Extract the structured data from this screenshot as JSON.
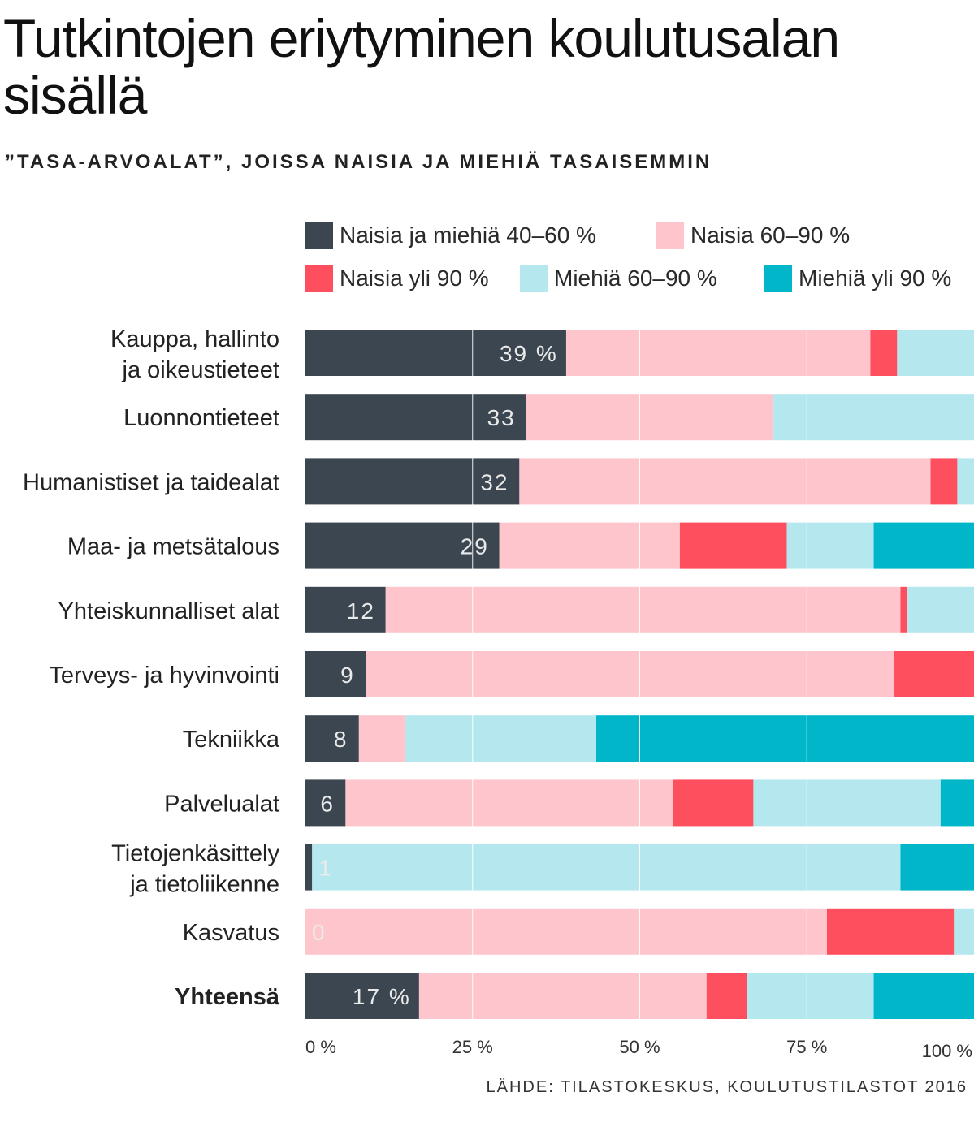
{
  "title": "Tutkintojen eriytyminen koulutusalan sisällä",
  "subtitle": "”TASA-ARVOALAT”, JOISSA NAISIA JA MIEHIÄ TASAISEMMIN",
  "source": "LÄHDE: TILASTOKESKUS, KOULUTUSTILASTOT 2016",
  "chart_data": {
    "type": "bar",
    "orientation": "horizontal",
    "stacked": true,
    "xlim": [
      0,
      100
    ],
    "x_ticks": [
      0,
      25,
      50,
      75,
      100
    ],
    "x_tick_labels": [
      "0 %",
      "25  %",
      "50 %",
      "75 %",
      "100 %"
    ],
    "grid": true,
    "legend_position": "top",
    "categories": [
      "Kauppa, hallinto ja oikeustieteet",
      "Luonnontieteet",
      "Humanistiset ja taidealat",
      "Maa- ja metsätalous",
      "Yhteiskunnalliset alat",
      "Terveys- ja hyvinvointi",
      "Tekniikka",
      "Palvelualat",
      "Tietojenkäsittely ja tietoliikenne",
      "Kasvatus",
      "Yhteensä"
    ],
    "bold_categories": [
      "Yhteensä"
    ],
    "value_labels": [
      "39 %",
      "33",
      "32",
      "29",
      "12",
      "9",
      "8",
      "6",
      "1",
      "0",
      "17 %"
    ],
    "series": [
      {
        "name": "Naisia ja miehiä 40–60 %",
        "color": "#3b4650",
        "values": [
          39,
          33,
          32,
          29,
          12,
          9,
          8,
          6,
          1,
          0,
          17
        ]
      },
      {
        "name": "Naisia 60–90 %",
        "color": "#fec6cc",
        "values": [
          45.5,
          37,
          61.5,
          27,
          77,
          79,
          7,
          49,
          0,
          78,
          43
        ]
      },
      {
        "name": "Naisia yli 90 %",
        "color": "#fe4f5e",
        "values": [
          4,
          0,
          4,
          16,
          1,
          12,
          0,
          12,
          0,
          19,
          6
        ]
      },
      {
        "name": "Miehiä 60–90 %",
        "color": "#b4e8ee",
        "values": [
          11.5,
          30,
          2.5,
          13,
          10,
          0,
          28.5,
          28,
          88,
          3,
          19
        ]
      },
      {
        "name": "Miehiä yli 90 %",
        "color": "#01b6c9",
        "values": [
          0,
          0,
          0,
          15,
          0,
          0,
          56.5,
          5,
          11,
          0,
          15
        ]
      }
    ]
  }
}
